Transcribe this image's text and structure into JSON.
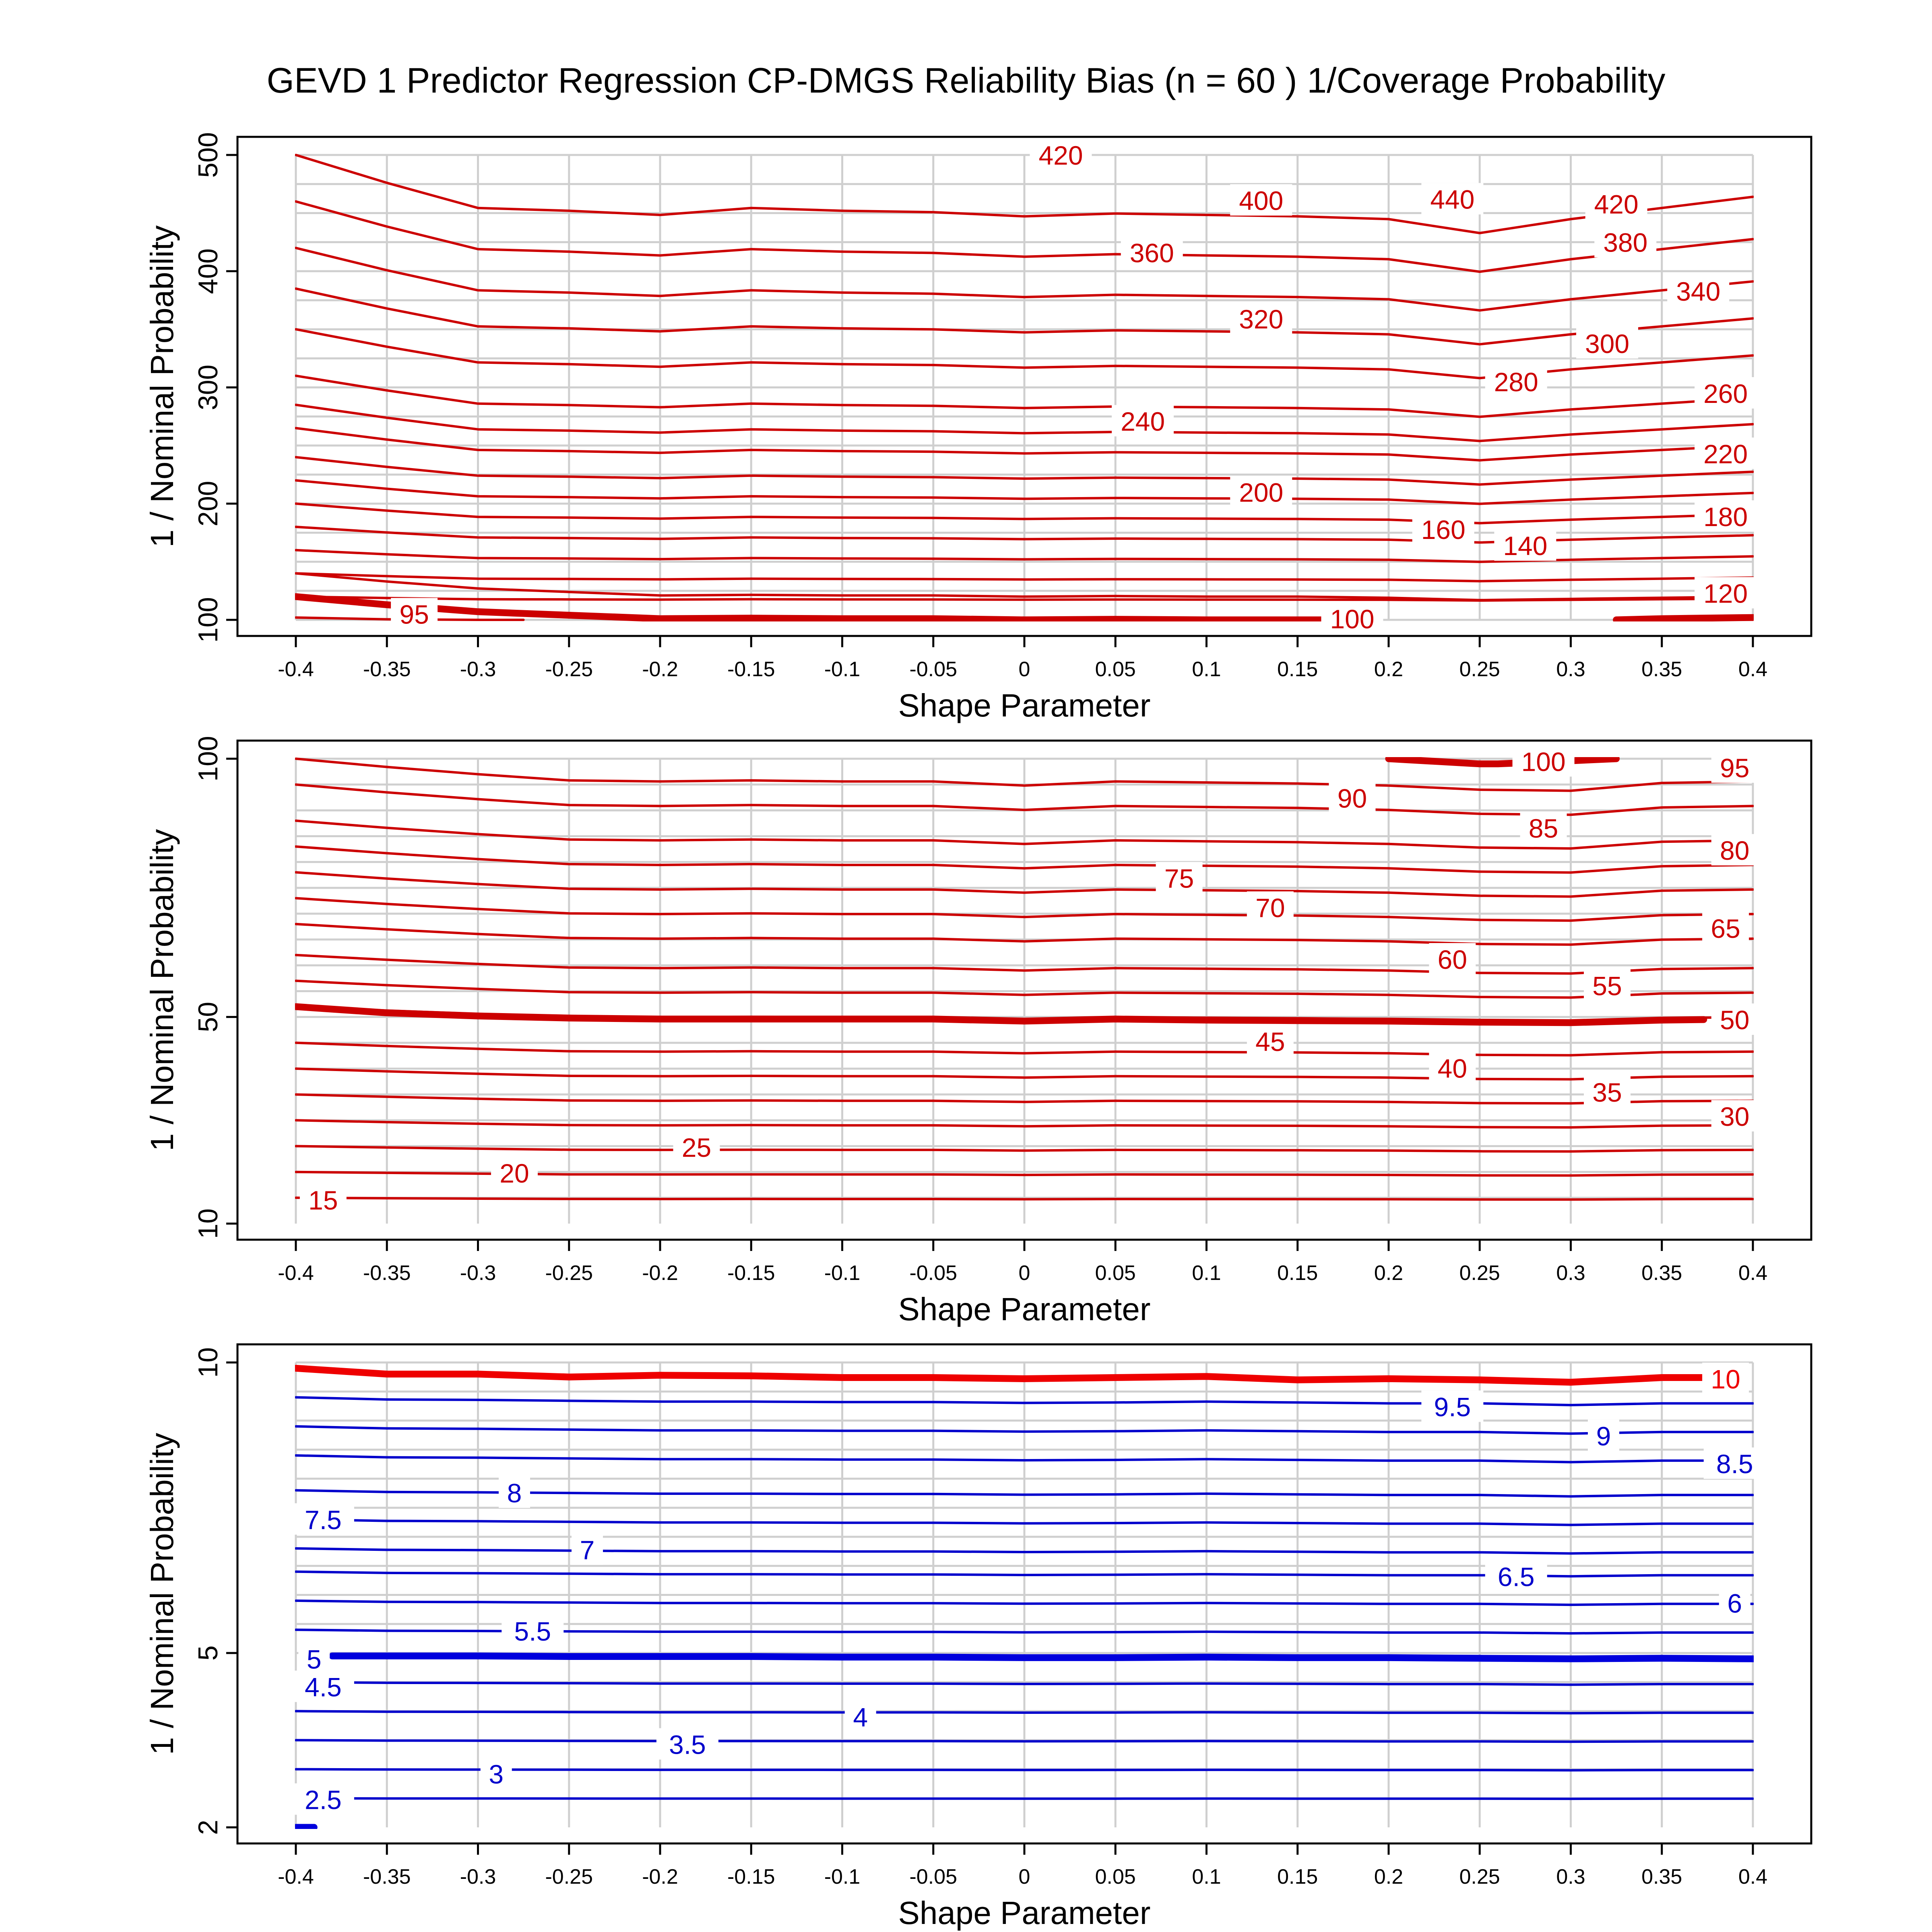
{
  "title": "GEVD 1 Predictor Regression CP-DMGS Reliability Bias (n = 60 ) 1/Coverage Probability",
  "chart_data": [
    {
      "type": "contour",
      "panel": "top",
      "xlabel": "Shape Parameter",
      "ylabel": "1 / Nominal Probability",
      "x": [
        -0.4,
        -0.35,
        -0.3,
        -0.25,
        -0.2,
        -0.15,
        -0.1,
        -0.05,
        0,
        0.05,
        0.1,
        0.15,
        0.2,
        0.25,
        0.3,
        0.35,
        0.4
      ],
      "xtick_labels": [
        "-0.4",
        "-0.35",
        "-0.3",
        "-0.25",
        "-0.2",
        "-0.15",
        "-0.1",
        "-0.05",
        "0",
        "0.05",
        "0.1",
        "0.15",
        "0.2",
        "0.25",
        "0.3",
        "0.35",
        "0.4"
      ],
      "xlim": [
        -0.4,
        0.4
      ],
      "ylim": [
        100,
        500
      ],
      "ytick_values": [
        100,
        200,
        300,
        400,
        500
      ],
      "ytick_labels": [
        "100",
        "200",
        "300",
        "400",
        "500"
      ],
      "grid_y": [
        100,
        125,
        150,
        175,
        200,
        225,
        250,
        275,
        300,
        325,
        350,
        375,
        400,
        425,
        450,
        475,
        500
      ],
      "y_start": [
        120,
        140,
        160,
        180,
        200,
        220,
        240,
        265,
        285,
        310,
        350,
        385,
        420,
        460,
        500
      ],
      "shape_profile": [
        0,
        0.2,
        0.38,
        0.4,
        0.43,
        0.38,
        0.4,
        0.41,
        0.44,
        0.42,
        0.43,
        0.44,
        0.46,
        0.56,
        0.46,
        0.38,
        0.3
      ],
      "color": "#cc0000",
      "bold_color": "#cc0000",
      "bold_line": {
        "segments": [
          {
            "x": [
              -0.4,
              -0.35,
              -0.3,
              -0.25,
              -0.2,
              -0.15,
              -0.1,
              -0.05,
              0,
              0.05,
              0.1,
              0.15,
              0.163
            ],
            "y": [
              120,
              113,
              107,
              104,
              101,
              101.5,
              101,
              101,
              100,
              100.5,
              100,
              100,
              100
            ]
          },
          {
            "x": [
              0.325,
              0.35,
              0.4
            ],
            "y": [
              100,
              101,
              102
            ]
          }
        ]
      },
      "extra_lines": [
        {
          "x": [
            -0.4,
            -0.35,
            -0.3,
            -0.25,
            -0.2,
            -0.15,
            -0.1,
            -0.05,
            0,
            0.05,
            0.1,
            0.15,
            0.2,
            0.25,
            0.3,
            0.35,
            0.4
          ],
          "y": [
            140,
            133,
            127,
            124,
            121,
            121.5,
            121,
            121,
            120,
            120.5,
            120,
            120,
            119,
            117,
            118,
            119,
            120
          ]
        },
        {
          "x": [
            -0.4,
            -0.35,
            -0.3,
            -0.275
          ],
          "y": [
            102,
            100.5,
            100,
            100
          ]
        }
      ],
      "labels": [
        {
          "text": "420",
          "x": 0.02,
          "y": 500
        },
        {
          "text": "440",
          "x": 0.235,
          "y": 462
        },
        {
          "text": "420",
          "x": 0.325,
          "y": 458
        },
        {
          "text": "400",
          "x": 0.13,
          "y": 461
        },
        {
          "text": "380",
          "x": 0.33,
          "y": 425
        },
        {
          "text": "360",
          "x": 0.07,
          "y": 416
        },
        {
          "text": "340",
          "x": 0.37,
          "y": 383
        },
        {
          "text": "320",
          "x": 0.13,
          "y": 359
        },
        {
          "text": "300",
          "x": 0.32,
          "y": 338
        },
        {
          "text": "280",
          "x": 0.27,
          "y": 305
        },
        {
          "text": "260",
          "x": 0.385,
          "y": 295
        },
        {
          "text": "240",
          "x": 0.065,
          "y": 271
        },
        {
          "text": "220",
          "x": 0.385,
          "y": 243
        },
        {
          "text": "200",
          "x": 0.13,
          "y": 210
        },
        {
          "text": "180",
          "x": 0.385,
          "y": 189
        },
        {
          "text": "160",
          "x": 0.23,
          "y": 178
        },
        {
          "text": "140",
          "x": 0.275,
          "y": 164
        },
        {
          "text": "120",
          "x": 0.385,
          "y": 123
        },
        {
          "text": "100",
          "x": 0.18,
          "y": 101
        },
        {
          "text": "95",
          "x": -0.335,
          "y": 105
        }
      ]
    },
    {
      "type": "contour",
      "panel": "middle",
      "xlabel": "Shape Parameter",
      "ylabel": "1 / Nominal Probability",
      "x": [
        -0.4,
        -0.35,
        -0.3,
        -0.25,
        -0.2,
        -0.15,
        -0.1,
        -0.05,
        0,
        0.05,
        0.1,
        0.15,
        0.2,
        0.25,
        0.3,
        0.35,
        0.4
      ],
      "xtick_labels": [
        "-0.4",
        "-0.35",
        "-0.3",
        "-0.25",
        "-0.2",
        "-0.15",
        "-0.1",
        "-0.05",
        "0",
        "0.05",
        "0.1",
        "0.15",
        "0.2",
        "0.25",
        "0.3",
        "0.35",
        "0.4"
      ],
      "xlim": [
        -0.4,
        0.4
      ],
      "ylim": [
        10,
        100
      ],
      "ytick_values": [
        10,
        50,
        100
      ],
      "ytick_labels": [
        "10",
        "50",
        "100"
      ],
      "grid_y": [
        15,
        20,
        25,
        30,
        35,
        40,
        45,
        50,
        55,
        60,
        65,
        70,
        75,
        80,
        85,
        90,
        95,
        100
      ],
      "y_start": [
        15,
        20,
        25,
        30,
        35,
        40,
        45,
        52,
        57,
        62,
        68,
        73,
        78,
        83,
        88,
        95,
        100
      ],
      "shape_profile": [
        0,
        0.16,
        0.3,
        0.42,
        0.44,
        0.42,
        0.44,
        0.44,
        0.52,
        0.44,
        0.46,
        0.48,
        0.52,
        0.6,
        0.62,
        0.47,
        0.44
      ],
      "color": "#cc0000",
      "bold_color": "#cc0000",
      "bold_line": {
        "segments": [
          {
            "x": [
              -0.4,
              -0.35,
              -0.3,
              -0.25,
              -0.2,
              -0.15,
              -0.1,
              -0.05,
              0,
              0.05,
              0.1,
              0.15,
              0.2,
              0.25,
              0.3,
              0.35,
              0.373
            ],
            "y": [
              52,
              50.8,
              50.2,
              49.8,
              49.6,
              49.6,
              49.6,
              49.6,
              49.2,
              49.6,
              49.4,
              49.3,
              49.2,
              49,
              48.9,
              49.4,
              49.5
            ]
          },
          {
            "x": [
              0.2,
              0.25,
              0.26,
              0.3,
              0.325
            ],
            "y": [
              100,
              99,
              99,
              99.6,
              100
            ]
          }
        ]
      },
      "extra_lines": [],
      "labels": [
        {
          "text": "100",
          "x": 0.285,
          "y": 99.5
        },
        {
          "text": "95",
          "x": 0.39,
          "y": 98.3
        },
        {
          "text": "90",
          "x": 0.18,
          "y": 92.4
        },
        {
          "text": "85",
          "x": 0.285,
          "y": 86.6
        },
        {
          "text": "80",
          "x": 0.39,
          "y": 82.3
        },
        {
          "text": "75",
          "x": 0.085,
          "y": 76.9
        },
        {
          "text": "70",
          "x": 0.135,
          "y": 71.2
        },
        {
          "text": "65",
          "x": 0.385,
          "y": 67.2
        },
        {
          "text": "60",
          "x": 0.235,
          "y": 61.2
        },
        {
          "text": "55",
          "x": 0.32,
          "y": 56.1
        },
        {
          "text": "50",
          "x": 0.39,
          "y": 49.5
        },
        {
          "text": "45",
          "x": 0.135,
          "y": 45.3
        },
        {
          "text": "40",
          "x": 0.235,
          "y": 40.1
        },
        {
          "text": "35",
          "x": 0.32,
          "y": 35.5
        },
        {
          "text": "30",
          "x": 0.39,
          "y": 30.8
        },
        {
          "text": "25",
          "x": -0.18,
          "y": 24.8
        },
        {
          "text": "20",
          "x": -0.28,
          "y": 19.8
        },
        {
          "text": "15",
          "x": -0.385,
          "y": 14.6
        }
      ]
    },
    {
      "type": "contour",
      "panel": "bottom",
      "xlabel": "Shape Parameter",
      "ylabel": "1 / Nominal Probability",
      "x": [
        -0.4,
        -0.35,
        -0.3,
        -0.25,
        -0.2,
        -0.15,
        -0.1,
        -0.05,
        0,
        0.05,
        0.1,
        0.15,
        0.2,
        0.25,
        0.3,
        0.35,
        0.4
      ],
      "xtick_labels": [
        "-0.4",
        "-0.35",
        "-0.3",
        "-0.25",
        "-0.2",
        "-0.15",
        "-0.1",
        "-0.05",
        "0",
        "0.05",
        "0.1",
        "0.15",
        "0.2",
        "0.25",
        "0.3",
        "0.35",
        "0.4"
      ],
      "xlim": [
        -0.4,
        0.4
      ],
      "ylim": [
        2,
        10
      ],
      "ytick_values": [
        2,
        5,
        10
      ],
      "ytick_labels": [
        "2",
        "5",
        "10"
      ],
      "grid_y": [
        2.5,
        3,
        3.5,
        4,
        4.5,
        5,
        5.5,
        6,
        6.5,
        7,
        7.5,
        8,
        8.5,
        9,
        9.5,
        10
      ],
      "y_start": [
        2.5,
        3,
        3.5,
        4,
        4.5,
        5.4,
        5.9,
        6.4,
        6.8,
        7.3,
        7.8,
        8.4,
        8.9,
        9.4
      ],
      "shape_profile": [
        0,
        0.05,
        0.06,
        0.08,
        0.1,
        0.1,
        0.11,
        0.11,
        0.13,
        0.12,
        0.1,
        0.12,
        0.14,
        0.14,
        0.18,
        0.14,
        0.14
      ],
      "color": "#0000cc",
      "bold_color": "#0000dd",
      "bold_top_color": "#ee0000",
      "bold_line": {
        "segments": [
          {
            "x": [
              -0.38,
              -0.35,
              -0.3,
              -0.25,
              -0.2,
              -0.15,
              -0.1,
              -0.05,
              0,
              0.05,
              0.1,
              0.15,
              0.2,
              0.25,
              0.3,
              0.35,
              0.4
            ],
            "y": [
              4.95,
              4.95,
              4.95,
              4.94,
              4.94,
              4.94,
              4.93,
              4.93,
              4.92,
              4.92,
              4.93,
              4.92,
              4.92,
              4.91,
              4.9,
              4.91,
              4.9
            ]
          },
          {
            "x": [
              -0.4,
              -0.39
            ],
            "y": [
              2,
              2
            ]
          }
        ]
      },
      "bold_top_line": {
        "x": [
          -0.4,
          -0.35,
          -0.3,
          -0.25,
          -0.2,
          -0.15,
          -0.1,
          -0.05,
          0,
          0.05,
          0.1,
          0.15,
          0.2,
          0.25,
          0.3,
          0.35,
          0.373
        ],
        "y": [
          9.9,
          9.8,
          9.8,
          9.75,
          9.78,
          9.77,
          9.74,
          9.74,
          9.72,
          9.74,
          9.76,
          9.7,
          9.72,
          9.7,
          9.66,
          9.74,
          9.74
        ]
      },
      "extra_lines": [],
      "labels": [
        {
          "text": "10",
          "x": 0.385,
          "y": 9.72
        },
        {
          "text": "9.5",
          "x": 0.235,
          "y": 9.24
        },
        {
          "text": "9",
          "x": 0.318,
          "y": 8.74
        },
        {
          "text": "8.5",
          "x": 0.39,
          "y": 8.26
        },
        {
          "text": "8",
          "x": -0.28,
          "y": 7.76
        },
        {
          "text": "7.5",
          "x": -0.385,
          "y": 7.3
        },
        {
          "text": "7",
          "x": -0.24,
          "y": 6.78
        },
        {
          "text": "6.5",
          "x": 0.27,
          "y": 6.32
        },
        {
          "text": "6",
          "x": 0.39,
          "y": 5.86
        },
        {
          "text": "5.5",
          "x": -0.27,
          "y": 5.38
        },
        {
          "text": "5",
          "x": -0.39,
          "y": 4.9
        },
        {
          "text": "4.5",
          "x": -0.385,
          "y": 4.42
        },
        {
          "text": "4",
          "x": -0.09,
          "y": 3.9
        },
        {
          "text": "3.5",
          "x": -0.185,
          "y": 3.43
        },
        {
          "text": "3",
          "x": -0.29,
          "y": 2.92
        },
        {
          "text": "2.5",
          "x": -0.385,
          "y": 2.48
        }
      ]
    }
  ]
}
